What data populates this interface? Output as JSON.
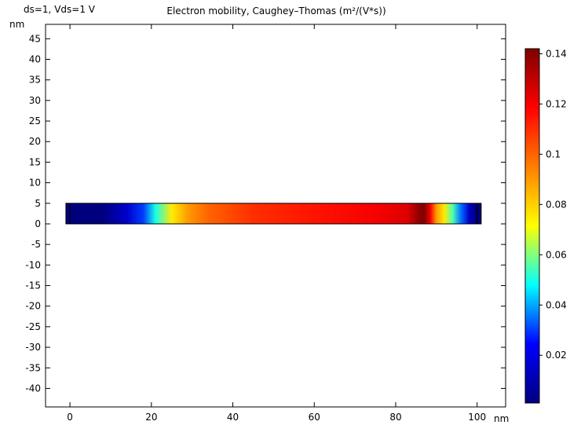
{
  "chart_data": {
    "type": "heatmap",
    "parameter_label": "ds=1, Vds=1 V",
    "title": "Electron mobility, Caughey–Thomas (m²/(V*s))",
    "x_unit_label": "nm",
    "y_unit_label": "nm",
    "x_ticks": [
      0,
      20,
      40,
      60,
      80,
      100
    ],
    "y_ticks": [
      45,
      40,
      35,
      30,
      25,
      20,
      15,
      10,
      5,
      0,
      -5,
      -10,
      -15,
      -20,
      -25,
      -30,
      -35,
      -40
    ],
    "xlim": [
      -6,
      107
    ],
    "ylim": [
      -44.5,
      48.5
    ],
    "device": {
      "x_range": [
        -1,
        101
      ],
      "y_range": [
        0,
        5
      ],
      "contact_lines_x": [
        0,
        100
      ],
      "mobility_profile": [
        {
          "x": -1,
          "value": 0.001
        },
        {
          "x": 8,
          "value": 0.001
        },
        {
          "x": 14,
          "value": 0.015
        },
        {
          "x": 18,
          "value": 0.03
        },
        {
          "x": 21,
          "value": 0.05
        },
        {
          "x": 25,
          "value": 0.075
        },
        {
          "x": 29,
          "value": 0.09
        },
        {
          "x": 34,
          "value": 0.1
        },
        {
          "x": 45,
          "value": 0.11
        },
        {
          "x": 60,
          "value": 0.115
        },
        {
          "x": 75,
          "value": 0.12
        },
        {
          "x": 83,
          "value": 0.125
        },
        {
          "x": 85.5,
          "value": 0.138
        },
        {
          "x": 87,
          "value": 0.142
        },
        {
          "x": 88.5,
          "value": 0.12
        },
        {
          "x": 90,
          "value": 0.09
        },
        {
          "x": 92,
          "value": 0.075
        },
        {
          "x": 94,
          "value": 0.055
        },
        {
          "x": 96,
          "value": 0.035
        },
        {
          "x": 98,
          "value": 0.015
        },
        {
          "x": 99.5,
          "value": 0.001
        },
        {
          "x": 101,
          "value": 0.001
        }
      ]
    },
    "colorbar": {
      "min": 0.001,
      "max": 0.142,
      "ticks": [
        0.14,
        0.12,
        0.1,
        0.08,
        0.06,
        0.04,
        0.02
      ],
      "colormap": [
        "#00007f",
        "#0000ff",
        "#00ffff",
        "#ffff00",
        "#ff7f00",
        "#ff0000",
        "#7f0000"
      ]
    }
  }
}
